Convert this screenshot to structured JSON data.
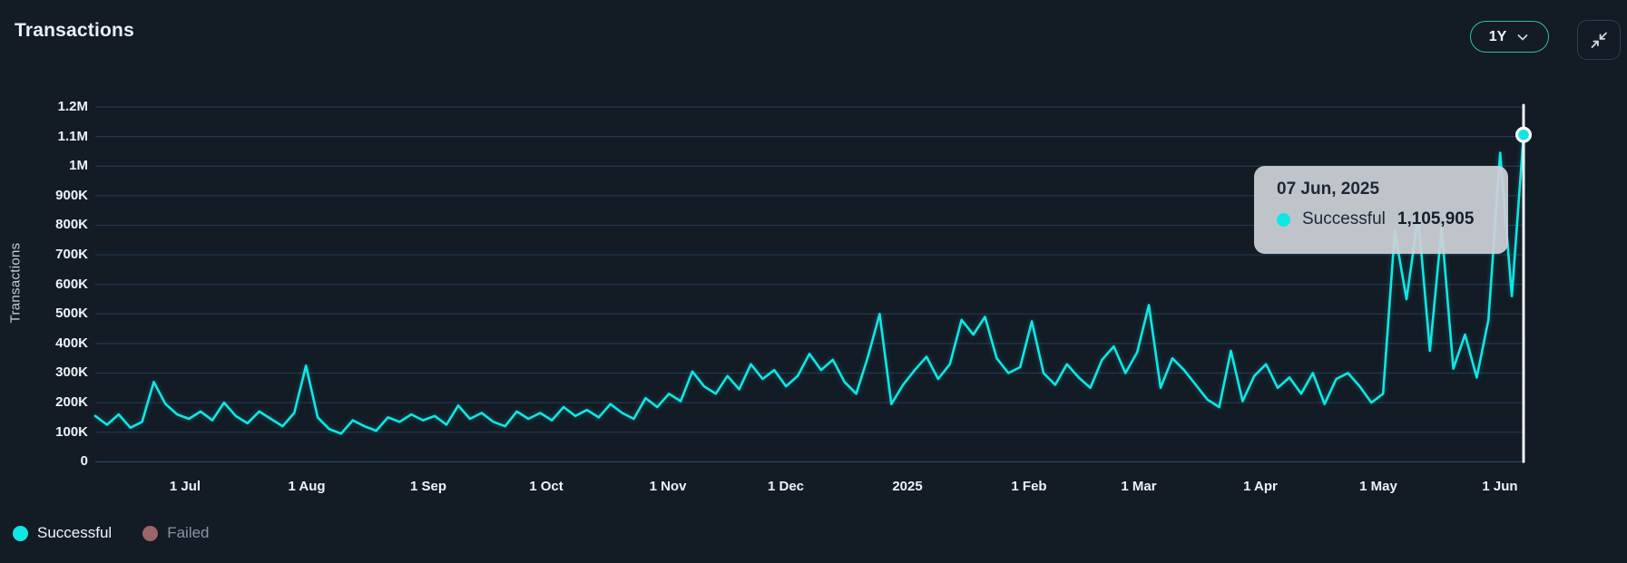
{
  "header": {
    "title": "Transactions"
  },
  "controls": {
    "range_selector": {
      "value": "1Y",
      "chevron_icon": "chevron-down-icon"
    },
    "collapse": {
      "icon": "collapse-arrows-icon"
    }
  },
  "tooltip": {
    "date": "07 Jun, 2025",
    "series_label": "Successful",
    "value_text": "1,105,905"
  },
  "legend": [
    {
      "label": "Successful",
      "color": "#10e7e4",
      "active": true
    },
    {
      "label": "Failed",
      "color": "#9c6569",
      "active": false
    }
  ],
  "colors": {
    "background": "#131b25",
    "gridline": "#22394f",
    "zero_line": "#2b4a66",
    "line_successful": "#10e7e4",
    "failed_dot": "#9c6569",
    "crosshair": "#ffffff",
    "tooltip_bg": "rgba(204,209,216,0.93)",
    "range_button_border": "#2fc393"
  },
  "chart_data": {
    "type": "line",
    "title": "Transactions",
    "ylabel": "Transactions",
    "ylim": [
      0,
      1200000
    ],
    "grid": "horizontal-only",
    "legend_position": "bottom-left",
    "y_tick_labels": [
      "1.2M",
      "1.1M",
      "1M",
      "900K",
      "800K",
      "700K",
      "600K",
      "500K",
      "400K",
      "300K",
      "200K",
      "100K",
      "0"
    ],
    "x_tick_labels": [
      "1 Jul",
      "1 Aug",
      "1 Sep",
      "1 Oct",
      "1 Nov",
      "1 Dec",
      "2025",
      "1 Feb",
      "1 Mar",
      "1 Apr",
      "1 May",
      "1 Jun"
    ],
    "x_start": "2024-06-08",
    "x_end": "2025-06-07",
    "sample_interval_days": 3,
    "series": [
      {
        "name": "Successful",
        "color": "#10e7e4",
        "values_thousands": [
          155,
          125,
          160,
          115,
          135,
          270,
          195,
          160,
          145,
          170,
          140,
          200,
          155,
          130,
          170,
          145,
          120,
          165,
          325,
          150,
          110,
          95,
          140,
          120,
          105,
          150,
          135,
          160,
          140,
          155,
          125,
          190,
          145,
          165,
          135,
          120,
          170,
          145,
          165,
          140,
          185,
          155,
          175,
          150,
          195,
          165,
          145,
          215,
          185,
          230,
          205,
          305,
          255,
          230,
          290,
          245,
          330,
          280,
          310,
          255,
          290,
          365,
          310,
          345,
          270,
          230,
          355,
          500,
          195,
          260,
          310,
          355,
          280,
          330,
          480,
          430,
          490,
          350,
          300,
          320,
          475,
          300,
          260,
          330,
          285,
          250,
          345,
          390,
          300,
          370,
          530,
          250,
          350,
          310,
          260,
          210,
          185,
          375,
          205,
          290,
          330,
          250,
          285,
          230,
          300,
          195,
          280,
          300,
          255,
          200,
          230,
          780,
          550,
          830,
          375,
          790,
          315,
          430,
          285,
          480,
          1045,
          560,
          1105.905
        ]
      },
      {
        "name": "Failed",
        "color": "#9c6569",
        "hidden": true,
        "values_thousands": []
      }
    ],
    "highlight": {
      "date": "07 Jun, 2025",
      "series": "Successful",
      "value": 1105905
    }
  }
}
